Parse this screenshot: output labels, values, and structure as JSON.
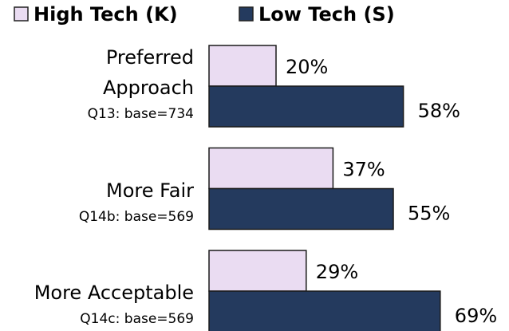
{
  "chart_data": {
    "type": "bar",
    "orientation": "horizontal",
    "categories": [
      "Preferred\nApproach",
      "More Fair",
      "More Acceptable"
    ],
    "category_notes": [
      "Q13: base=734",
      "Q14b: base=569",
      "Q14c: base=569"
    ],
    "series": [
      {
        "name": "High Tech (K)",
        "color": "#eadcf2",
        "values": [
          20,
          37,
          29
        ],
        "value_labels": [
          "20%",
          "37%",
          "29%"
        ]
      },
      {
        "name": "Low Tech (S)",
        "color": "#243a5e",
        "values": [
          58,
          55,
          69
        ],
        "value_labels": [
          "58%",
          "55%",
          "69%"
        ]
      }
    ],
    "legend": "top"
  }
}
